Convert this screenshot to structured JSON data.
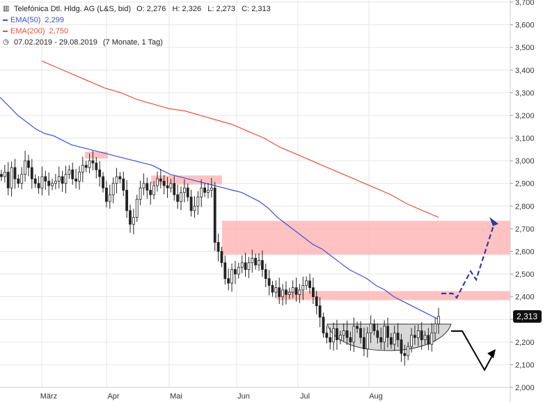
{
  "legend": {
    "instrument": "Telefónica Dtl. Hldg. AG (L&S, bid)",
    "ohlc": "O: 2,276   H: 2,326   L: 2,273   C: 2,313",
    "ema50_label": "EMA(50)",
    "ema50_value": "2,299",
    "ema200_label": "EMA(200)",
    "ema200_value": "2,750",
    "period": "07.02.2019 - 29.08.2019",
    "period_note": "(7 Monate, 1 Tag)"
  },
  "colors": {
    "ema50": "#3b4fd8",
    "ema200": "#e8503a",
    "candle": "#222222",
    "zone": "#ffb3b3",
    "grid": "#e6e6e6",
    "bowl": "#d9d9d9",
    "forecast_up": "#2e3b9e",
    "forecast_down": "#000000"
  },
  "chart_data": {
    "type": "candlestick",
    "y_ticks": [
      "2,000",
      "2,100",
      "2,200",
      "2,300",
      "2,400",
      "2,500",
      "2,600",
      "2,700",
      "2,800",
      "2,900",
      "3,000",
      "3,100",
      "3,200",
      "3,300",
      "3,400",
      "3,500",
      "3,600",
      "3,700"
    ],
    "ylim": [
      2.0,
      3.7
    ],
    "x_labels": [
      "März",
      "Apr",
      "Mai",
      "Jun",
      "Jul",
      "Aug"
    ],
    "last_price_label": "2,313",
    "last_price": 2.313,
    "close": [
      2.93,
      2.95,
      2.88,
      2.97,
      2.92,
      2.9,
      2.94,
      3.0,
      2.97,
      2.92,
      2.9,
      2.88,
      2.93,
      2.91,
      2.89,
      2.9,
      2.91,
      2.93,
      2.9,
      2.94,
      2.96,
      2.92,
      2.91,
      2.95,
      2.98,
      2.97,
      3.0,
      2.99,
      2.96,
      2.93,
      2.88,
      2.82,
      2.85,
      2.9,
      2.93,
      2.92,
      2.87,
      2.78,
      2.72,
      2.75,
      2.83,
      2.88,
      2.9,
      2.87,
      2.85,
      2.89,
      2.92,
      2.91,
      2.89,
      2.88,
      2.9,
      2.85,
      2.82,
      2.86,
      2.88,
      2.84,
      2.78,
      2.8,
      2.84,
      2.88,
      2.86,
      2.87,
      2.88,
      2.64,
      2.6,
      2.55,
      2.48,
      2.46,
      2.52,
      2.5,
      2.53,
      2.55,
      2.52,
      2.55,
      2.57,
      2.54,
      2.56,
      2.52,
      2.48,
      2.45,
      2.42,
      2.44,
      2.4,
      2.43,
      2.41,
      2.42,
      2.44,
      2.41,
      2.43,
      2.45,
      2.47,
      2.44,
      2.4,
      2.36,
      2.31,
      2.24,
      2.22,
      2.2,
      2.26,
      2.21,
      2.23,
      2.25,
      2.22,
      2.2,
      2.27,
      2.26,
      2.22,
      2.17,
      2.24,
      2.28,
      2.25,
      2.22,
      2.2,
      2.27,
      2.22,
      2.19,
      2.24,
      2.21,
      2.15,
      2.14,
      2.18,
      2.23,
      2.22,
      2.25,
      2.21,
      2.23,
      2.19,
      2.24,
      2.28,
      2.313
    ],
    "ema50_visible": [
      3.28,
      3.24,
      3.2,
      3.17,
      3.14,
      3.12,
      3.11,
      3.09,
      3.07,
      3.06,
      3.05,
      3.04,
      3.03,
      3.02,
      3.01,
      3.0,
      2.99,
      2.98,
      2.96,
      2.94,
      2.93,
      2.92,
      2.91,
      2.9,
      2.89,
      2.88,
      2.87,
      2.86,
      2.84,
      2.82,
      2.79,
      2.75,
      2.72,
      2.69,
      2.66,
      2.63,
      2.61,
      2.58,
      2.55,
      2.52,
      2.5,
      2.48,
      2.45,
      2.43,
      2.4,
      2.38,
      2.36,
      2.34,
      2.32,
      2.3
    ],
    "ema200_visible": [
      3.44,
      3.41,
      3.38,
      3.35,
      3.32,
      3.3,
      3.27,
      3.25,
      3.23,
      3.22,
      3.2,
      3.18,
      3.16,
      3.13,
      3.1,
      3.06,
      3.03,
      3.0,
      2.97,
      2.94,
      2.91,
      2.88,
      2.85,
      2.81,
      2.78,
      2.75
    ],
    "resistance_zones": [
      {
        "from": 3.04,
        "to": 3.01
      },
      {
        "from": 2.935,
        "to": 2.895
      },
      {
        "from": 2.735,
        "to": 2.585
      },
      {
        "from": 2.425,
        "to": 2.385
      }
    ],
    "grid": true,
    "legend_position": "top-left"
  }
}
